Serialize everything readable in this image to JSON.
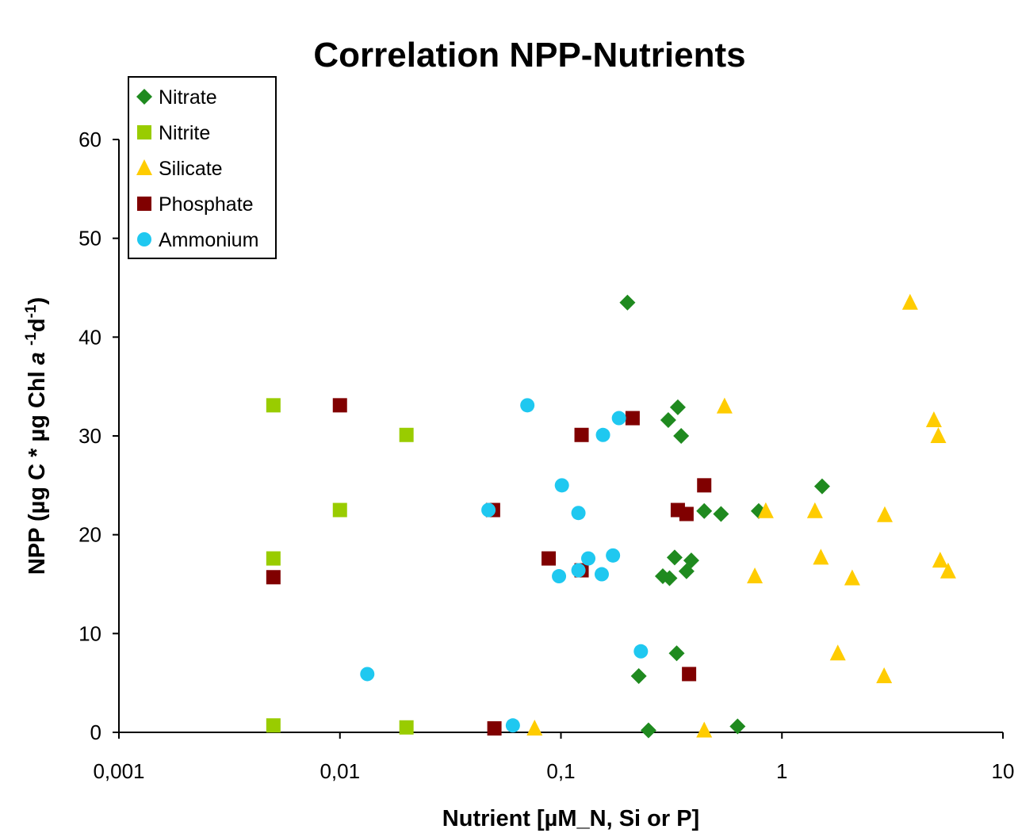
{
  "chart_data": {
    "type": "scatter",
    "title": "Correlation NPP-Nutrients",
    "xlabel": "Nutrient [µM_N, Si or P]",
    "ylabel": [
      "NPP (µg C * µg Chl ",
      "a",
      " ",
      "-1",
      "d",
      "-1",
      ")"
    ],
    "xscale": "log",
    "xlim": [
      0.001,
      10
    ],
    "xticks": [
      {
        "value": 0.001,
        "label": "0,001"
      },
      {
        "value": 0.01,
        "label": "0,01"
      },
      {
        "value": 0.1,
        "label": "0,1"
      },
      1,
      10
    ],
    "ylim": [
      0,
      60
    ],
    "yticks": [
      0,
      10,
      20,
      30,
      40,
      50,
      60
    ],
    "grid": false,
    "legend": "top-left",
    "series": [
      {
        "name": "Nitrate",
        "color": "#1f8a1f",
        "marker": "diamond",
        "x": [
          0.2,
          0.338,
          0.306,
          0.35,
          1.52,
          0.445,
          0.53,
          0.785,
          0.327,
          0.389,
          0.37,
          0.289,
          0.31,
          0.334,
          0.225,
          0.249,
          0.63
        ],
        "values": [
          43.5,
          32.9,
          31.6,
          30.0,
          24.9,
          22.4,
          22.1,
          22.4,
          17.7,
          17.4,
          16.3,
          15.8,
          15.6,
          8.0,
          5.7,
          0.2,
          0.6
        ]
      },
      {
        "name": "Nitrite",
        "color": "#99cc00",
        "marker": "square",
        "x": [
          0.005,
          0.02,
          0.01,
          0.005,
          0.005,
          0.02
        ],
        "values": [
          33.1,
          30.1,
          22.5,
          17.6,
          0.7,
          0.5
        ]
      },
      {
        "name": "Silicate",
        "color": "#ffcc00",
        "marker": "triangle",
        "x": [
          3.8,
          0.55,
          4.87,
          5.1,
          0.845,
          1.41,
          2.92,
          1.5,
          5.2,
          5.65,
          0.754,
          2.08,
          1.79,
          2.9,
          0.076,
          0.445
        ],
        "values": [
          43.5,
          33.0,
          31.6,
          30.0,
          22.4,
          22.4,
          22.0,
          17.7,
          17.4,
          16.3,
          15.8,
          15.6,
          8.0,
          5.7,
          0.4,
          0.2
        ]
      },
      {
        "name": "Phosphate",
        "color": "#800000",
        "marker": "square",
        "x": [
          0.01,
          0.124,
          0.211,
          0.445,
          0.0493,
          0.338,
          0.37,
          0.088,
          0.124,
          0.005,
          0.38,
          0.05
        ],
        "values": [
          33.1,
          30.1,
          31.8,
          25.0,
          22.5,
          22.5,
          22.1,
          17.6,
          16.4,
          15.7,
          5.9,
          0.4
        ]
      },
      {
        "name": "Ammonium",
        "color": "#1fc8f0",
        "marker": "circle",
        "x": [
          0.0705,
          0.183,
          0.155,
          0.101,
          0.047,
          0.12,
          0.172,
          0.133,
          0.12,
          0.098,
          0.153,
          0.23,
          0.0133,
          0.0606
        ],
        "values": [
          33.1,
          31.8,
          30.1,
          25.0,
          22.5,
          22.2,
          17.9,
          17.6,
          16.4,
          15.8,
          16.0,
          8.2,
          5.9,
          0.7
        ]
      }
    ]
  }
}
